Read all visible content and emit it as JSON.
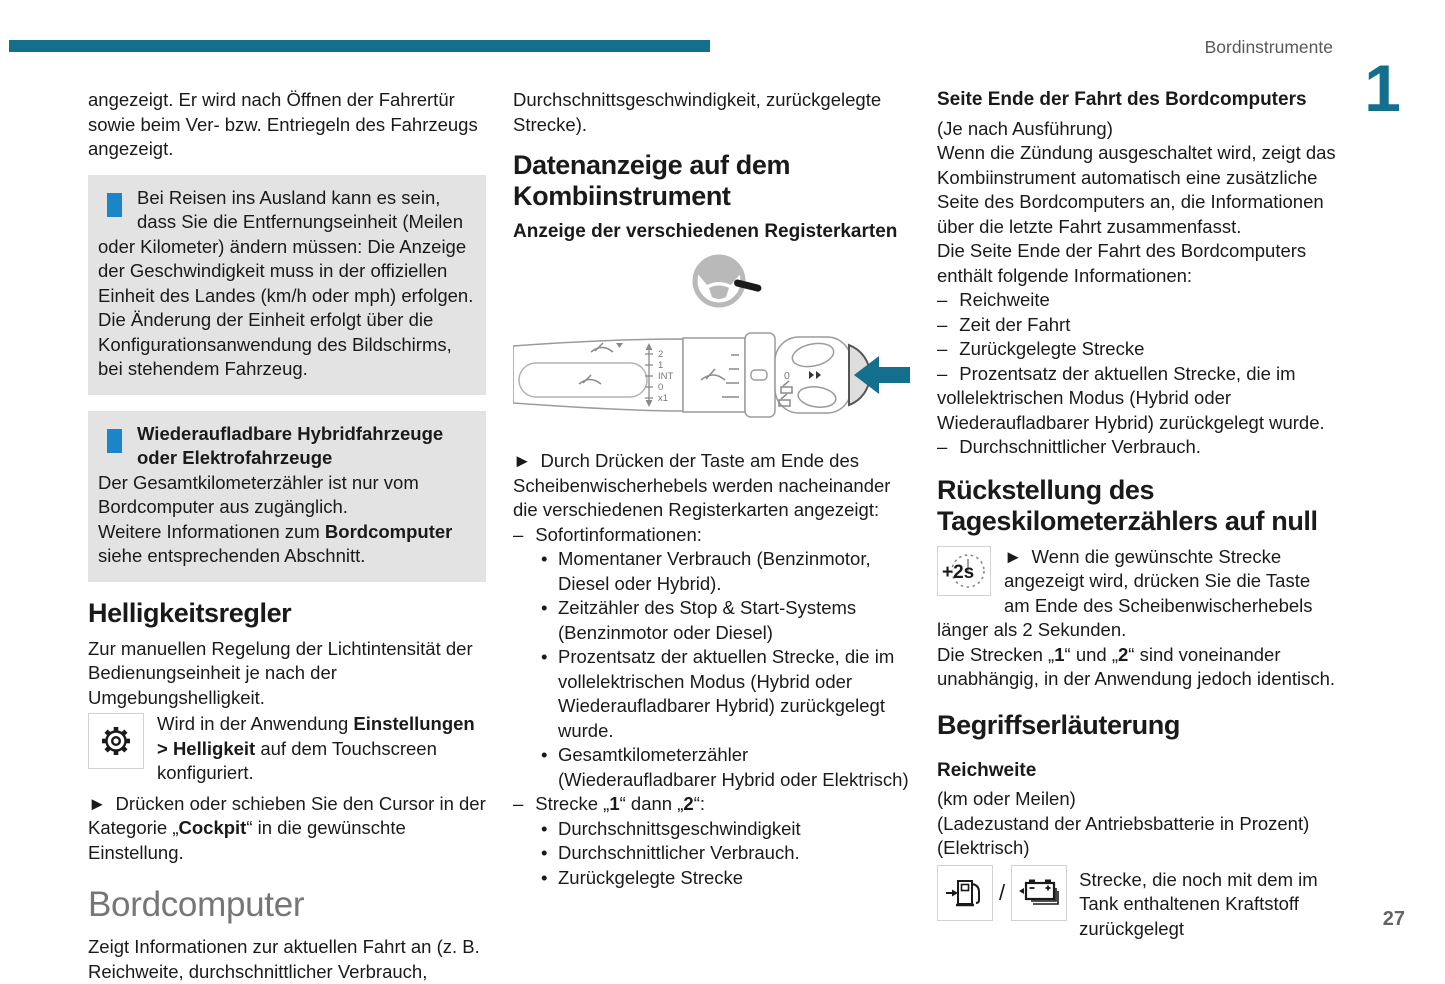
{
  "colors": {
    "accent_teal": "#146f8d",
    "info_blue": "#1a86c8",
    "infobox_bg": "#e3e3e3",
    "heading_gray": "#767676"
  },
  "page": {
    "header_title": "Bordinstrumente",
    "chapter_number": "1",
    "page_number": "27"
  },
  "col1": {
    "intro": "angezeigt. Er wird nach Öffnen der Fahrertür sowie beim Ver- bzw. Entriegeln des Fahrzeugs angezeigt.",
    "info_box_1": {
      "p1": "Bei Reisen ins Ausland kann es sein, dass Sie die Entfernungseinheit (Meilen oder Kilometer) ändern müssen: Die Anzeige der Geschwindigkeit muss in der offiziellen Einheit des Landes (km/h oder mph) erfolgen.",
      "p2": "Die Änderung der Einheit erfolgt über die Konfigurationsanwendung des Bildschirms, bei stehendem Fahrzeug."
    },
    "info_box_2": {
      "title": "Wiederaufladbare Hybridfahrzeuge oder Elektrofahrzeuge",
      "p1": "Der Gesamtkilometerzähler ist nur vom Bordcomputer aus zugänglich.",
      "p2": "Weitere Informationen zum **Bordcomputer** siehe entsprechenden Abschnitt."
    },
    "brightness": {
      "title": "Helligkeitsregler",
      "body": "Zur manuellen Regelung der Lichtintensität der Bedienungseinheit je nach der Umgebungshelligkeit.",
      "settings_note": "Wird in der Anwendung **Einstellungen > Helligkeit** auf dem Touchscreen konfiguriert.",
      "instruction": "► Drücken oder schieben Sie den Cursor in der Kategorie „**Cockpit**“ in die gewünschte Einstellung."
    },
    "bordcomputer": {
      "title": "Bordcomputer",
      "body": "Zeigt Informationen zur aktuellen Fahrt an (z. B. Reichweite, durchschnittlicher Verbrauch,"
    }
  },
  "col2": {
    "continuation": "Durchschnittsgeschwindigkeit, zurückgelegte Strecke).",
    "section_title": "Datenanzeige auf dem Kombiinstrument",
    "subsection_title": "Anzeige der verschiedenen Registerkarten",
    "illustration_labels": {
      "scale": [
        "2",
        "1",
        "INT",
        "0",
        "x1"
      ],
      "collar": "0"
    },
    "intro": "► Durch Drücken der Taste am Ende des Scheibenwischerhebels werden nacheinander die verschiedenen Registerkarten angezeigt:",
    "items": [
      {
        "style": "dash",
        "text": "Sofortinformationen:"
      },
      {
        "style": "bullet",
        "text": "Momentaner Verbrauch (Benzinmotor, Diesel oder Hybrid)."
      },
      {
        "style": "bullet",
        "text": "Zeitzähler des Stop & Start-Systems (Benzinmotor oder Diesel)"
      },
      {
        "style": "bullet",
        "text": "Prozentsatz der aktuellen Strecke, die im vollelektrischen Modus (Hybrid oder Wiederaufladbarer Hybrid) zurückgelegt wurde."
      },
      {
        "style": "bullet",
        "text": "Gesamtkilometerzähler (Wiederaufladbarer Hybrid oder Elektrisch)"
      },
      {
        "style": "dash",
        "text": "Strecke „**1**“ dann „**2**“:"
      },
      {
        "style": "bullet",
        "text": "Durchschnittsgeschwindigkeit"
      },
      {
        "style": "bullet",
        "text": "Durchschnittlicher Verbrauch."
      },
      {
        "style": "bullet",
        "text": "Zurückgelegte Strecke"
      }
    ]
  },
  "col3": {
    "end_of_trip": {
      "title": "Seite Ende der Fahrt des Bordcomputers",
      "variant_note": "(Je nach Ausführung)",
      "p1": "Wenn die Zündung ausgeschaltet wird, zeigt das Kombiinstrument automatisch eine zusätzliche Seite des Bordcomputers an, die Informationen über die letzte Fahrt zusammenfasst.",
      "p2": "Die Seite Ende der Fahrt des Bordcomputers enthält folgende Informationen:",
      "items": [
        "Reichweite",
        "Zeit der Fahrt",
        "Zurückgelegte Strecke",
        "Prozentsatz der aktuellen Strecke, die im vollelektrischen Modus (Hybrid oder Wiederaufladbarer Hybrid) zurückgelegt wurde.",
        "Durchschnittlicher Verbrauch."
      ]
    },
    "reset": {
      "title": "Rückstellung des Tageskilometerzählers auf null",
      "icon_label": "+2s",
      "p1": "► Wenn die gewünschte Strecke angezeigt wird, drücken Sie die Taste am Ende des Scheibenwischerhebels länger als 2 Sekunden.",
      "p2": "Die Strecken „**1**“ und „**2**“ sind voneinander unabhängig, in der Anwendung jedoch identisch."
    },
    "glossary": {
      "title": "Begriffserläuterung",
      "range_title": "Reichweite",
      "notes": [
        "(km oder Meilen)",
        "(Ladezustand der Antriebsbatterie in Prozent)",
        "(Elektrisch)"
      ],
      "icon_separator": "/",
      "desc": "Strecke, die noch mit dem im Tank enthaltenen Kraftstoff zurückgelegt"
    }
  }
}
